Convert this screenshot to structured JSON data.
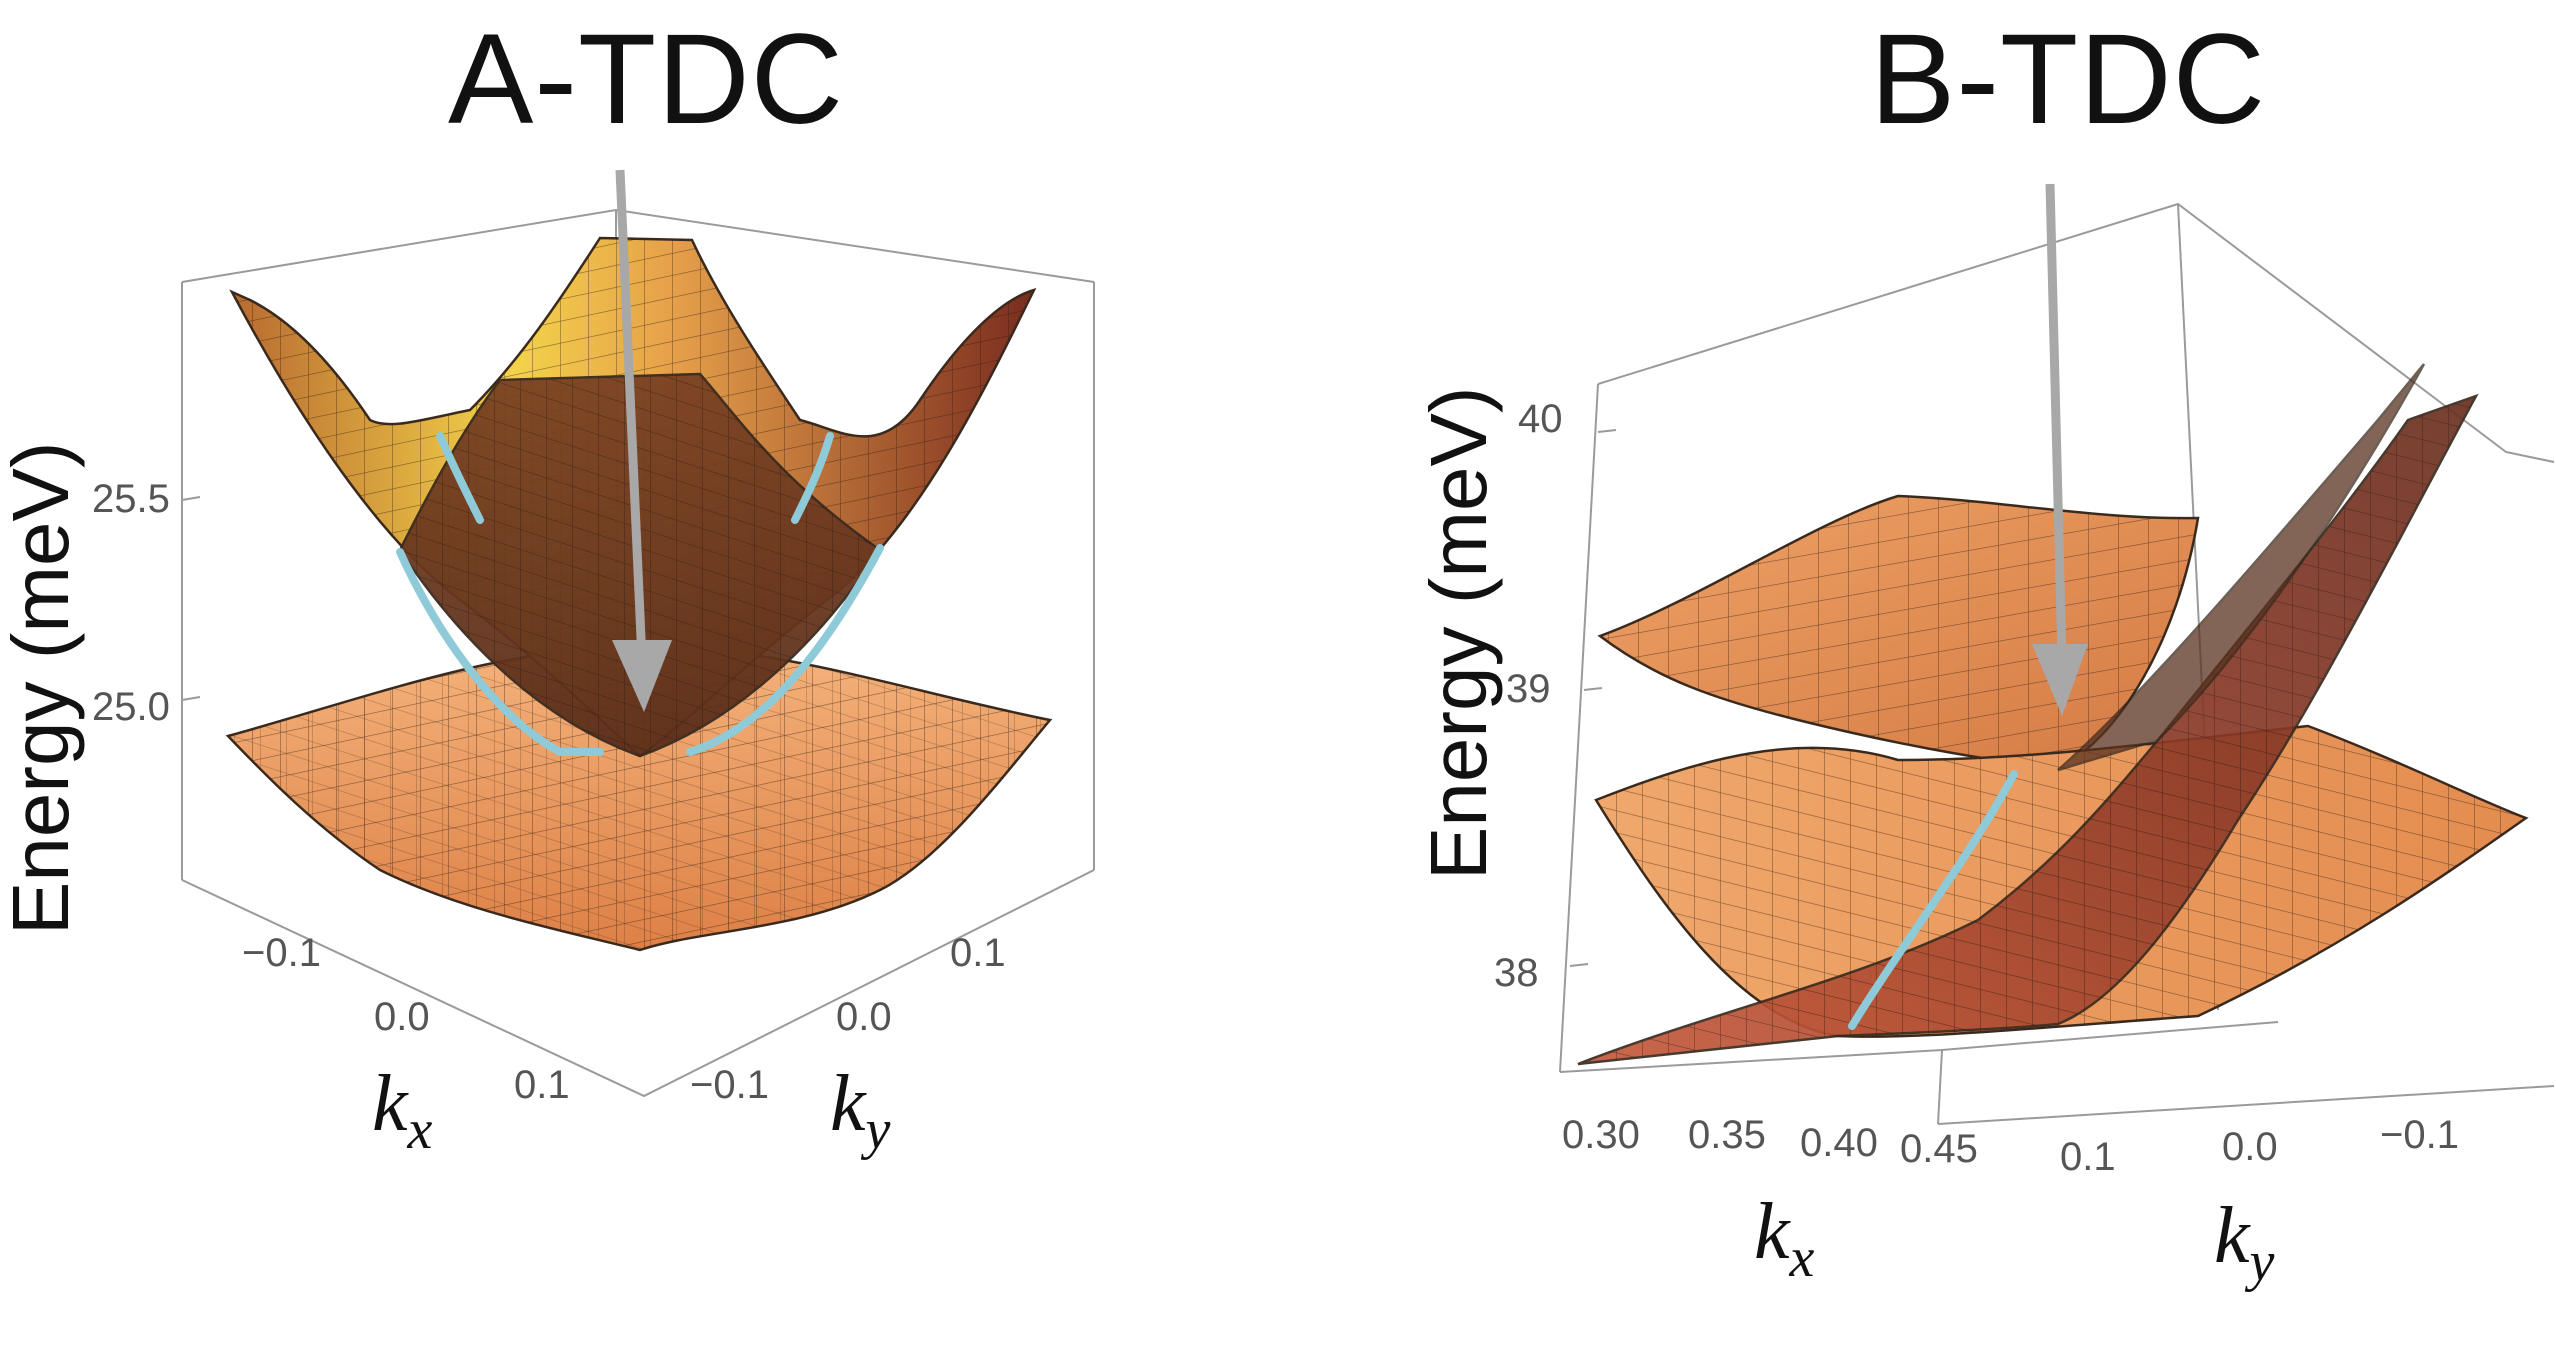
{
  "panels": [
    {
      "title": "A-TDC",
      "ylabel": "Energy (meV)",
      "z_ticks": [
        "25.5",
        "25.0"
      ],
      "kx_label": "k",
      "kx_sub": "x",
      "ky_label": "k",
      "ky_sub": "y",
      "kx_ticks": [
        "−0.1",
        "0.0",
        "0.1"
      ],
      "ky_ticks": [
        "−0.1",
        "0.0",
        "0.1"
      ]
    },
    {
      "title": "B-TDC",
      "ylabel": "Energy (meV)",
      "z_ticks": [
        "40",
        "39",
        "38"
      ],
      "kx_label": "k",
      "kx_sub": "x",
      "ky_label": "k",
      "ky_sub": "y",
      "kx_ticks": [
        "0.30",
        "0.35",
        "0.40",
        "0.45"
      ],
      "ky_ticks": [
        "0.1",
        "0.0",
        "−0.1"
      ]
    }
  ],
  "colors": {
    "surface_light": "#f0a968",
    "surface_mid": "#e08850",
    "surface_dark": "#6b3a24",
    "cone_bright": "#f3d34a",
    "tdc_curve": "#8fcad8",
    "arrow": "#a8a8a8",
    "box": "#9a9a9a"
  }
}
